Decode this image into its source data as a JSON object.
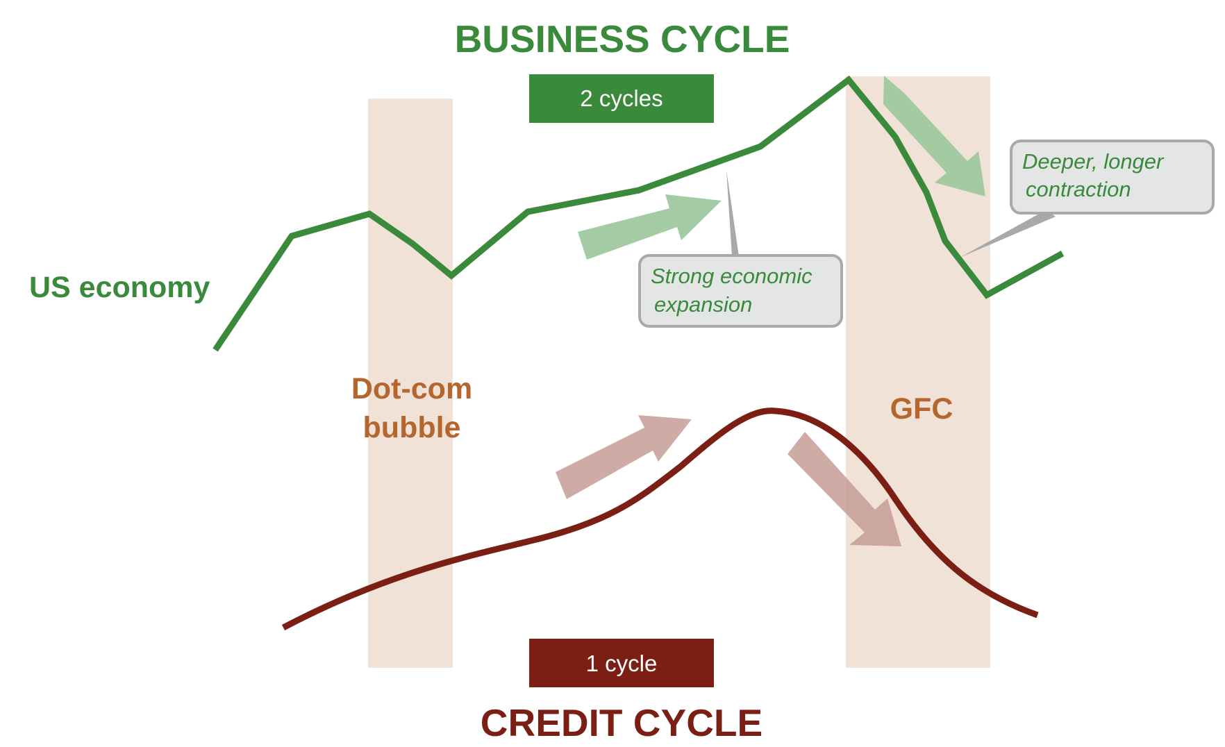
{
  "titles": {
    "business": "BUSINESS CYCLE",
    "credit": "CREDIT CYCLE"
  },
  "badges": {
    "business": "2 cycles",
    "credit": "1 cycle"
  },
  "series_labels": {
    "economy": "US economy"
  },
  "bands": {
    "dotcom_line1": "Dot-com",
    "dotcom_line2": "bubble",
    "gfc": "GFC"
  },
  "callouts": {
    "expansion_line1": "Strong economic",
    "expansion_line2": "expansion",
    "contraction_line1": "Deeper, longer",
    "contraction_line2": "contraction"
  },
  "colors": {
    "business_green": "#3a8a3c",
    "credit_red": "#7b1e14",
    "band_fill": "#f0e2d6",
    "band_label": "#b5652e",
    "callout_bg": "#e3e6e4",
    "callout_border": "#a7aaa8",
    "green_arrow": "#9fc89f",
    "red_arrow": "#c59c95",
    "white": "#ffffff"
  }
}
